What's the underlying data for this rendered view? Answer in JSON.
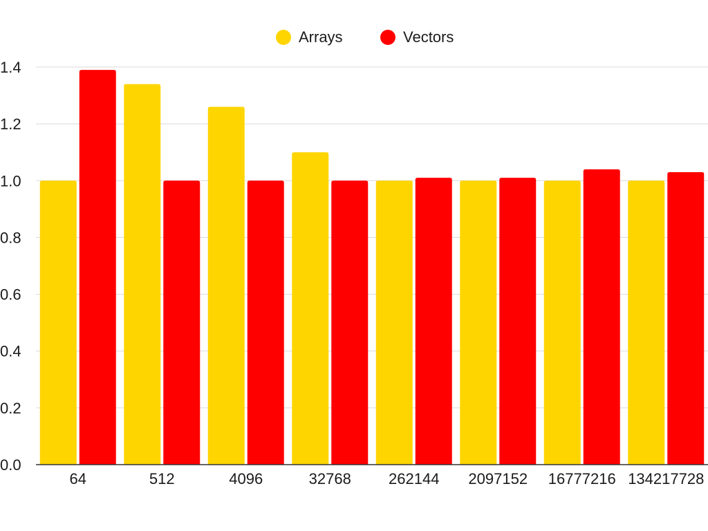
{
  "chart_data": {
    "type": "bar",
    "title": "",
    "xlabel": "",
    "ylabel": "",
    "categories": [
      "64",
      "512",
      "4096",
      "32768",
      "262144",
      "2097152",
      "16777216",
      "134217728"
    ],
    "series": [
      {
        "name": "Arrays",
        "color": "#FFD500",
        "values": [
          1.0,
          1.34,
          1.26,
          1.1,
          1.0,
          1.0,
          1.0,
          1.0
        ]
      },
      {
        "name": "Vectors",
        "color": "#FF0000",
        "values": [
          1.39,
          1.0,
          1.0,
          1.0,
          1.01,
          1.01,
          1.04,
          1.03
        ]
      }
    ],
    "ylim": [
      0,
      1.4
    ],
    "yticks": [
      "0.0",
      "0.2",
      "0.4",
      "0.6",
      "0.8",
      "1.0",
      "1.2",
      "1.4"
    ],
    "grid": true,
    "legend_position": "top-center"
  }
}
